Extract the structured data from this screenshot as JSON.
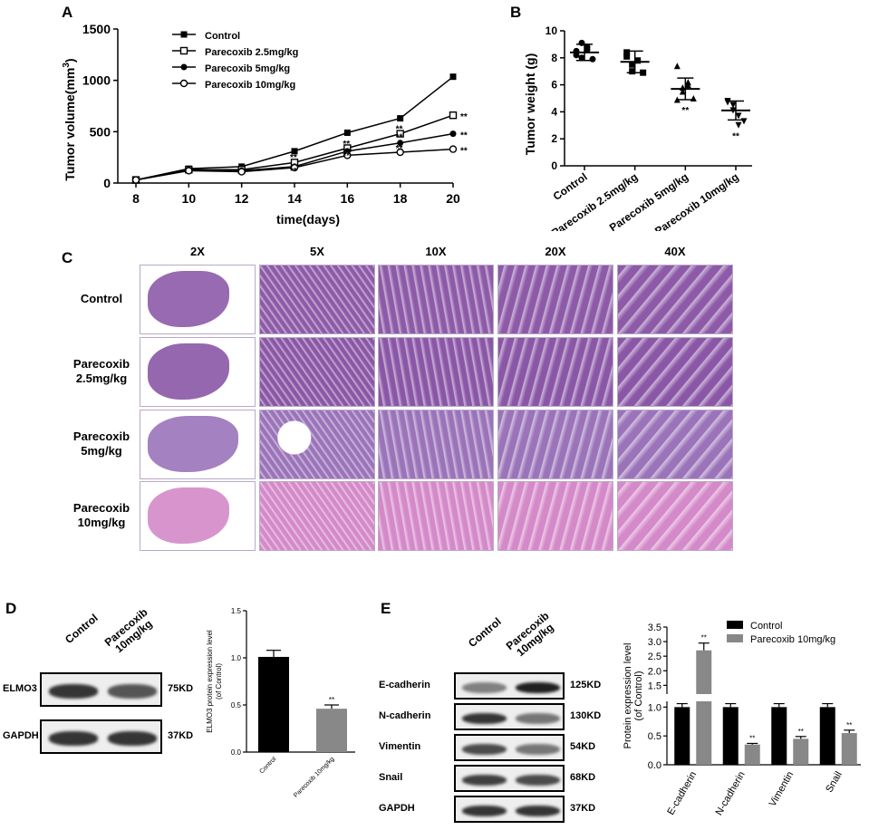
{
  "panels": {
    "a": "A",
    "b": "B",
    "c": "C",
    "d": "D",
    "e": "E"
  },
  "sig": "**",
  "chart_data": [
    {
      "id": "A",
      "type": "line",
      "xlabel": "time(days)",
      "ylabel": "Tumor volume(mm3)",
      "ylabel_main": "Tumor volume(mm",
      "ylabel_sup": "3",
      "ylabel_close": ")",
      "x": [
        8,
        10,
        12,
        14,
        16,
        18,
        20
      ],
      "xticks": [
        "8",
        "10",
        "12",
        "14",
        "16",
        "18",
        "20"
      ],
      "ylim": [
        0,
        1500
      ],
      "yticks": [
        "0",
        "500",
        "1000",
        "1500"
      ],
      "legend_position": "top-left",
      "series": [
        {
          "name": "Control",
          "marker": "square-filled",
          "values": [
            30,
            140,
            160,
            310,
            490,
            630,
            1035
          ]
        },
        {
          "name": "Parecoxib 2.5mg/kg",
          "marker": "square-open",
          "values": [
            30,
            130,
            130,
            200,
            340,
            480,
            660
          ]
        },
        {
          "name": "Parecoxib 5mg/kg",
          "marker": "circle-filled",
          "values": [
            30,
            125,
            120,
            160,
            310,
            390,
            480
          ]
        },
        {
          "name": "Parecoxib 10mg/kg",
          "marker": "circle-open",
          "values": [
            30,
            120,
            110,
            150,
            270,
            300,
            330
          ]
        }
      ]
    },
    {
      "id": "B",
      "type": "scatter",
      "ylabel": "Tumor weight (g)",
      "categories": [
        "Control",
        "Parecoxib 2.5mg/kg",
        "Parecoxib 5mg/kg",
        "Parecoxib 10mg/kg"
      ],
      "ylim": [
        0,
        10
      ],
      "yticks": [
        "0",
        "2",
        "4",
        "6",
        "8",
        "10"
      ],
      "means": [
        8.4,
        7.7,
        5.7,
        4.1
      ],
      "sd": [
        0.6,
        0.8,
        0.8,
        0.7
      ],
      "points": [
        [
          8.2,
          9.1,
          8.8,
          7.9,
          8.5,
          8.0,
          8.6
        ],
        [
          8.4,
          7.0,
          7.8,
          6.9,
          8.1,
          7.5
        ],
        [
          7.4,
          5.5,
          6.2,
          5.0,
          4.9,
          5.8,
          6.0
        ],
        [
          4.8,
          4.5,
          3.7,
          3.3,
          4.7,
          4.1,
          3.0
        ]
      ],
      "markers": [
        "circle",
        "square",
        "triangle",
        "triangle-down"
      ],
      "sig_marks": [
        false,
        false,
        true,
        true
      ]
    },
    {
      "id": "D",
      "type": "bar",
      "ylabel_lines": [
        "ELMO3 protein expression level",
        "(of Control)"
      ],
      "categories": [
        "Control",
        "Parecoxib 10mg/kg"
      ],
      "values": [
        1.01,
        0.46
      ],
      "errors": [
        0.07,
        0.04
      ],
      "ylim": [
        0,
        1.5
      ],
      "yticks": [
        "0.0",
        "0.5",
        "1.0",
        "1.5"
      ],
      "colors": [
        "#000000",
        "#888888"
      ],
      "sig_marks": [
        false,
        true
      ]
    },
    {
      "id": "E",
      "type": "bar",
      "ylabel_lines": [
        "Protein expression level",
        "(of Control)"
      ],
      "categories": [
        "E-cadherin",
        "N-cadherin",
        "Vimentin",
        "Snail"
      ],
      "ylim": [
        0,
        3.5
      ],
      "axis_break": [
        1.1,
        1.2
      ],
      "yticks_lower": [
        "0.0",
        "0.5",
        "1.0"
      ],
      "yticks_upper": [
        "1.5",
        "2.0",
        "2.5",
        "3.0",
        "3.5"
      ],
      "legend_position": "top-right",
      "series": [
        {
          "name": "Control",
          "color": "#000000",
          "values": [
            1.0,
            1.0,
            1.0,
            1.0
          ],
          "errors": [
            0.06,
            0.06,
            0.06,
            0.06
          ]
        },
        {
          "name": "Parecoxib 10mg/kg",
          "color": "#888888",
          "values": [
            2.7,
            0.35,
            0.45,
            0.55
          ],
          "errors": [
            0.25,
            0.02,
            0.04,
            0.05
          ]
        }
      ]
    }
  ],
  "histology": {
    "columns": [
      "2X",
      "5X",
      "10X",
      "20X",
      "40X"
    ],
    "rows": [
      {
        "label1": "Control",
        "label2": "",
        "tone": "#8d5aa8"
      },
      {
        "label1": "Parecoxib",
        "label2": "2.5mg/kg",
        "tone": "#8a57a6"
      },
      {
        "label1": "Parecoxib",
        "label2": "5mg/kg",
        "tone": "#9a73b9"
      },
      {
        "label1": "Parecoxib",
        "label2": "10mg/kg",
        "tone": "#d489c8"
      }
    ]
  },
  "blot_d": {
    "lanes": [
      "Control",
      "Parecoxib 10mg/kg"
    ],
    "lane2_line1": "Parecoxib",
    "lane2_line2": "10mg/kg",
    "rows": [
      {
        "name": "ELMO3",
        "kd": "75KD"
      },
      {
        "name": "GAPDH",
        "kd": "37KD"
      }
    ]
  },
  "blot_e": {
    "lanes": [
      "Control",
      "Parecoxib 10mg/kg"
    ],
    "lane2_line1": "Parecoxib",
    "lane2_line2": "10mg/kg",
    "rows": [
      {
        "name": "E-cadherin",
        "kd": "125KD"
      },
      {
        "name": "N-cadherin",
        "kd": "130KD"
      },
      {
        "name": "Vimentin",
        "kd": "54KD"
      },
      {
        "name": "Snail",
        "kd": "68KD"
      },
      {
        "name": "GAPDH",
        "kd": "37KD"
      }
    ]
  }
}
